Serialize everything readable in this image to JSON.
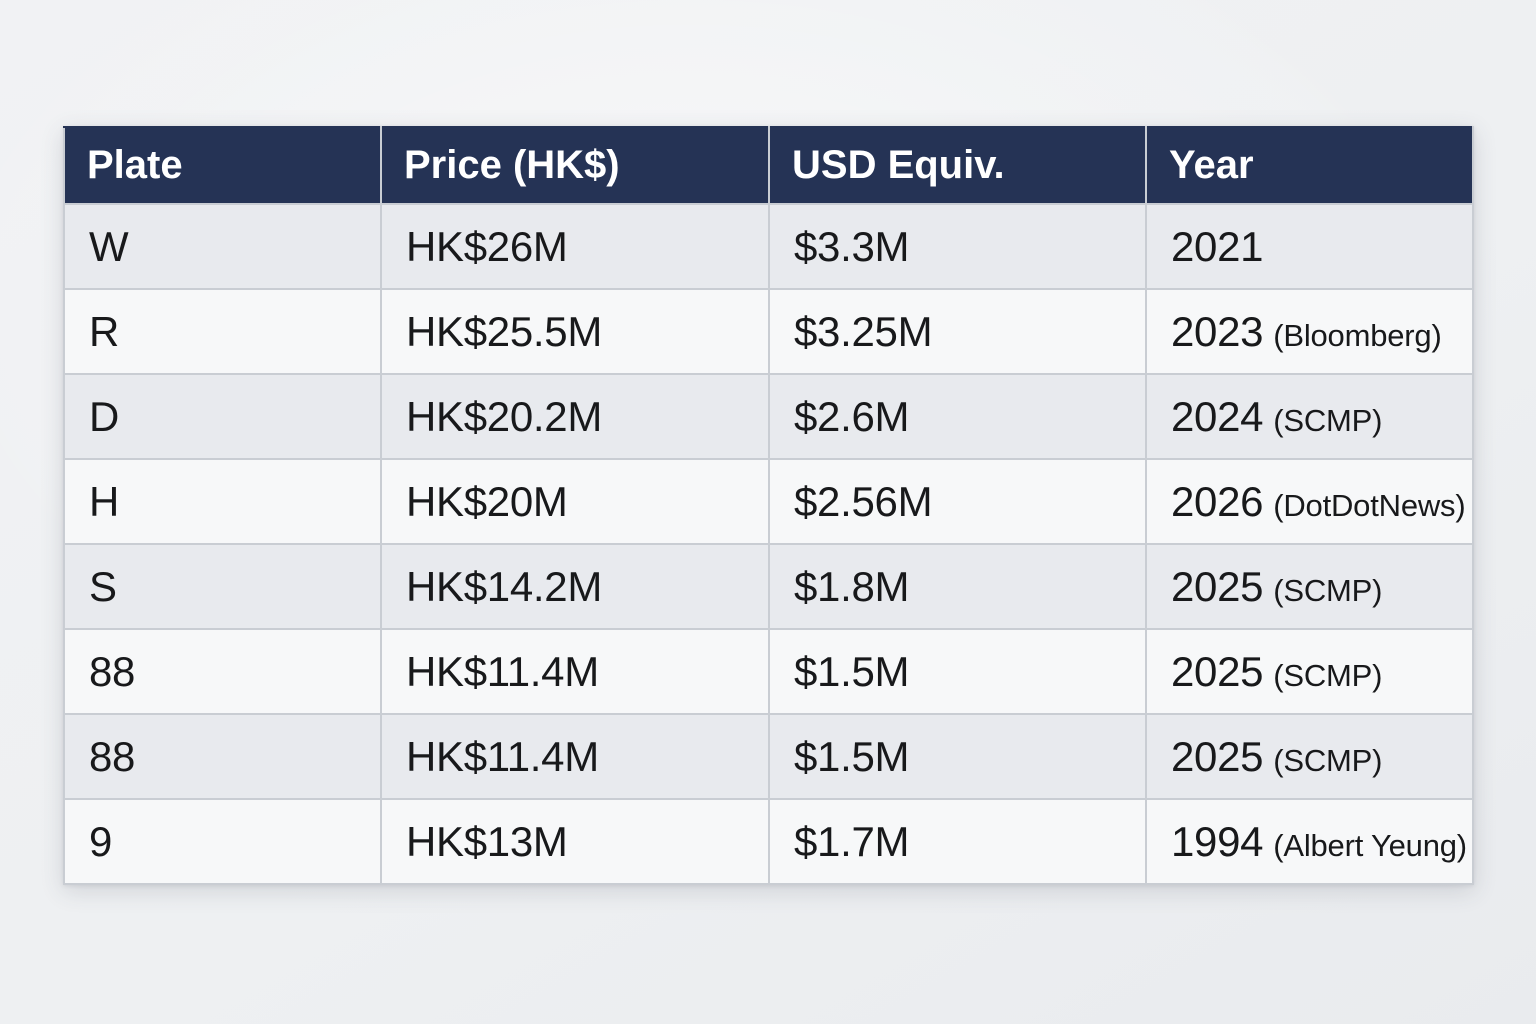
{
  "theme": {
    "header-bg": "#253355",
    "header-text": "#ffffff",
    "row-odd": "#e8eaee",
    "row-even": "#f7f8f9",
    "border": "#c9cdd3",
    "text": "#18191b",
    "page-bg": "#eef0f2"
  },
  "chart_data": {
    "type": "table",
    "columns": [
      "Plate",
      "Price (HK$)",
      "USD Equiv.",
      "Year"
    ],
    "rows": [
      {
        "plate": "W",
        "price": "HK$26M",
        "usd": "$3.3M",
        "year": "2021",
        "source": ""
      },
      {
        "plate": "R",
        "price": "HK$25.5M",
        "usd": "$3.25M",
        "year": "2023",
        "source": "(Bloomberg)"
      },
      {
        "plate": "D",
        "price": "HK$20.2M",
        "usd": "$2.6M",
        "year": "2024",
        "source": "(SCMP)"
      },
      {
        "plate": "H",
        "price": "HK$20M",
        "usd": "$2.56M",
        "year": "2026",
        "source": "(DotDotNews)"
      },
      {
        "plate": "S",
        "price": "HK$14.2M",
        "usd": "$1.8M",
        "year": "2025",
        "source": "(SCMP)"
      },
      {
        "plate": "88",
        "price": "HK$11.4M",
        "usd": "$1.5M",
        "year": "2025",
        "source": "(SCMP)"
      },
      {
        "plate": "88",
        "price": "HK$11.4M",
        "usd": "$1.5M",
        "year": "2025",
        "source": "(SCMP)"
      },
      {
        "plate": "9",
        "price": "HK$13M",
        "usd": "$1.7M",
        "year": "1994",
        "source": "(Albert Yeung)"
      }
    ]
  }
}
